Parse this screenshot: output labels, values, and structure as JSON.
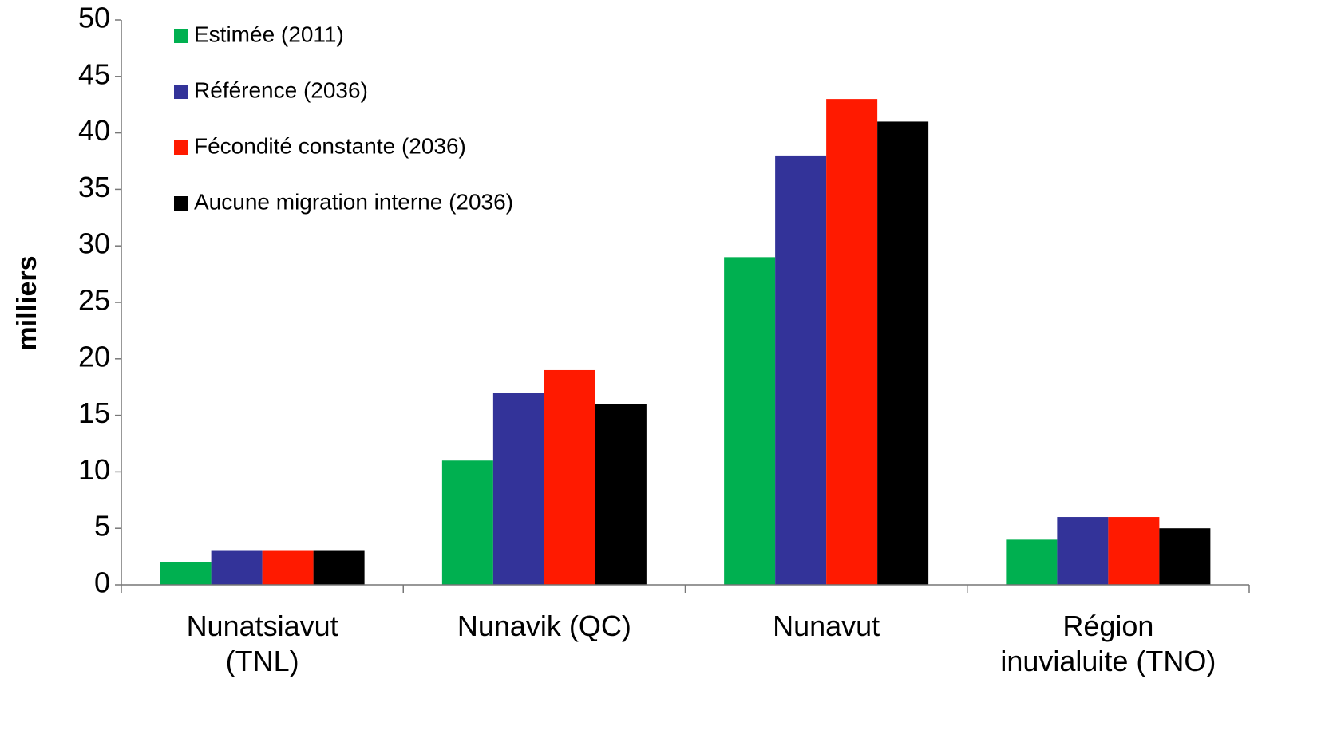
{
  "chart_data": {
    "type": "bar",
    "y_label": "milliers",
    "categories": [
      "Nunatsiavut\n(TNL)",
      "Nunavik (QC)",
      "Nunavut",
      "Région\ninuvialuite (TNO)"
    ],
    "series": [
      {
        "name": "Estimée (2011)",
        "color": "#00b050",
        "values": [
          2,
          11,
          29,
          4
        ]
      },
      {
        "name": "Référence (2036)",
        "color": "#333399",
        "values": [
          3,
          17,
          38,
          6
        ]
      },
      {
        "name": "Fécondité constante (2036)",
        "color": "#ff1a00",
        "values": [
          3,
          19,
          43,
          6
        ]
      },
      {
        "name": "Aucune migration interne (2036)",
        "color": "#000000",
        "values": [
          3,
          16,
          41,
          5
        ]
      }
    ],
    "ylim": [
      0,
      50
    ],
    "yticks": [
      0,
      5,
      10,
      15,
      20,
      25,
      30,
      35,
      40,
      45,
      50
    ],
    "grid": false,
    "legend": "top-left"
  }
}
